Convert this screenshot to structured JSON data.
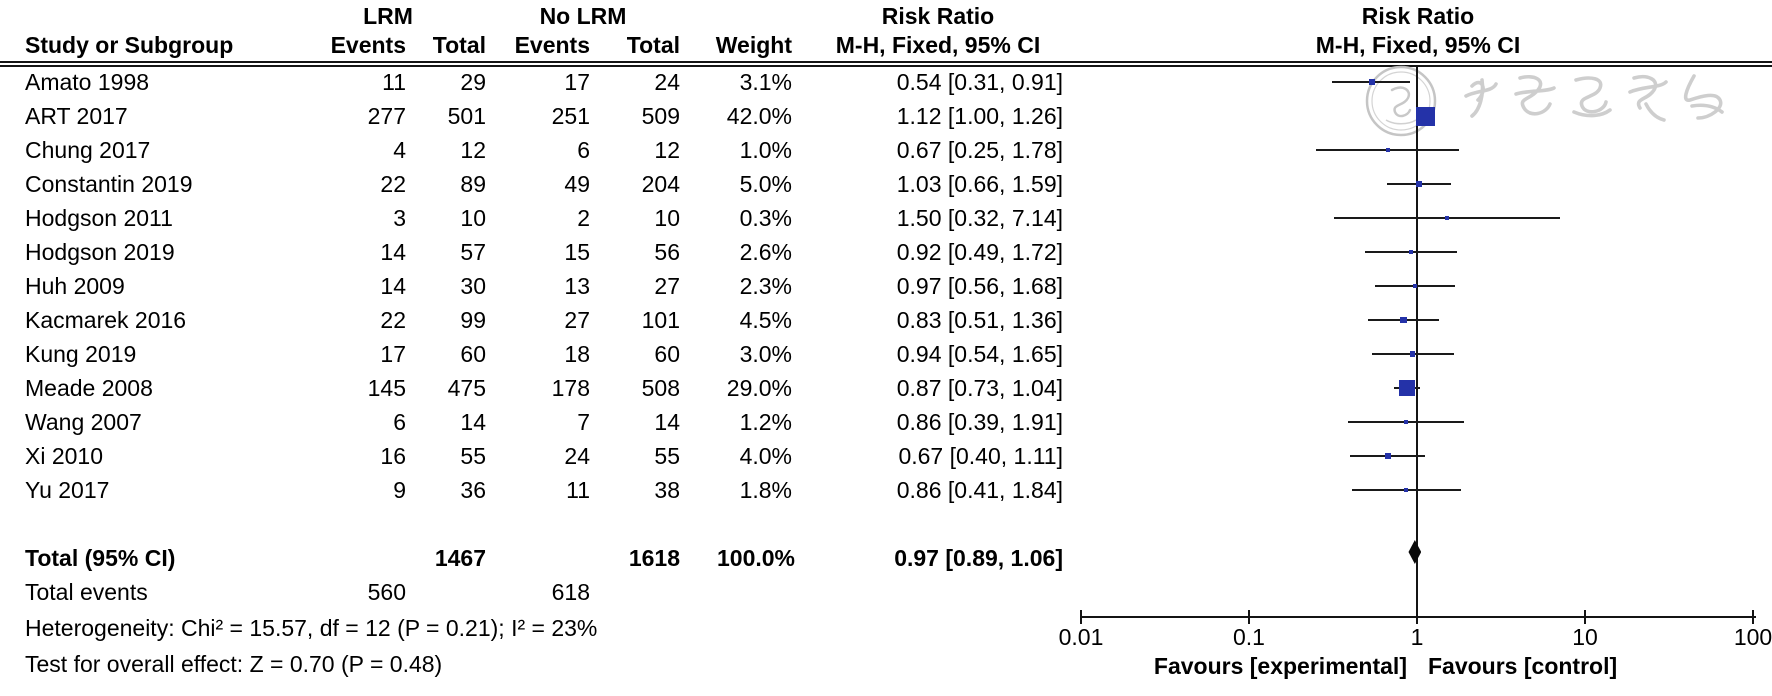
{
  "table": {
    "group1": "LRM",
    "group2": "No LRM",
    "risk_ratio_header": "Risk Ratio",
    "method_header": "M-H, Fixed, 95% CI",
    "study_col": "Study or Subgroup",
    "events_col": "Events",
    "total_col": "Total",
    "weight_col": "Weight"
  },
  "chart_data": {
    "type": "forest",
    "effect_measure": "Risk Ratio",
    "method": "M-H, Fixed, 95% CI",
    "x_axis": {
      "scale": "log",
      "xlim": [
        0.01,
        100
      ],
      "ticks": [
        0.01,
        0.1,
        1,
        10,
        100
      ],
      "tick_labels": [
        "0.01",
        "0.1",
        "1",
        "10",
        "100"
      ],
      "reference_line": 1
    },
    "favours_left": "Favours [experimental]",
    "favours_right": "Favours [control]",
    "studies": [
      {
        "study": "Amato 1998",
        "events_lrm": 11,
        "total_lrm": 29,
        "events_no_lrm": 17,
        "total_no_lrm": 24,
        "weight": "3.1%",
        "weight_pct": 3.1,
        "rr": 0.54,
        "ci_low": 0.31,
        "ci_high": 0.91,
        "rr_text": "0.54 [0.31, 0.91]"
      },
      {
        "study": "ART 2017",
        "events_lrm": 277,
        "total_lrm": 501,
        "events_no_lrm": 251,
        "total_no_lrm": 509,
        "weight": "42.0%",
        "weight_pct": 42.0,
        "rr": 1.12,
        "ci_low": 1.0,
        "ci_high": 1.26,
        "rr_text": "1.12 [1.00, 1.26]"
      },
      {
        "study": "Chung 2017",
        "events_lrm": 4,
        "total_lrm": 12,
        "events_no_lrm": 6,
        "total_no_lrm": 12,
        "weight": "1.0%",
        "weight_pct": 1.0,
        "rr": 0.67,
        "ci_low": 0.25,
        "ci_high": 1.78,
        "rr_text": "0.67 [0.25, 1.78]"
      },
      {
        "study": "Constantin 2019",
        "events_lrm": 22,
        "total_lrm": 89,
        "events_no_lrm": 49,
        "total_no_lrm": 204,
        "weight": "5.0%",
        "weight_pct": 5.0,
        "rr": 1.03,
        "ci_low": 0.66,
        "ci_high": 1.59,
        "rr_text": "1.03 [0.66, 1.59]"
      },
      {
        "study": "Hodgson 2011",
        "events_lrm": 3,
        "total_lrm": 10,
        "events_no_lrm": 2,
        "total_no_lrm": 10,
        "weight": "0.3%",
        "weight_pct": 0.3,
        "rr": 1.5,
        "ci_low": 0.32,
        "ci_high": 7.14,
        "rr_text": "1.50 [0.32, 7.14]"
      },
      {
        "study": "Hodgson 2019",
        "events_lrm": 14,
        "total_lrm": 57,
        "events_no_lrm": 15,
        "total_no_lrm": 56,
        "weight": "2.6%",
        "weight_pct": 2.6,
        "rr": 0.92,
        "ci_low": 0.49,
        "ci_high": 1.72,
        "rr_text": "0.92 [0.49, 1.72]"
      },
      {
        "study": "Huh 2009",
        "events_lrm": 14,
        "total_lrm": 30,
        "events_no_lrm": 13,
        "total_no_lrm": 27,
        "weight": "2.3%",
        "weight_pct": 2.3,
        "rr": 0.97,
        "ci_low": 0.56,
        "ci_high": 1.68,
        "rr_text": "0.97 [0.56, 1.68]"
      },
      {
        "study": "Kacmarek 2016",
        "events_lrm": 22,
        "total_lrm": 99,
        "events_no_lrm": 27,
        "total_no_lrm": 101,
        "weight": "4.5%",
        "weight_pct": 4.5,
        "rr": 0.83,
        "ci_low": 0.51,
        "ci_high": 1.36,
        "rr_text": "0.83 [0.51, 1.36]"
      },
      {
        "study": "Kung 2019",
        "events_lrm": 17,
        "total_lrm": 60,
        "events_no_lrm": 18,
        "total_no_lrm": 60,
        "weight": "3.0%",
        "weight_pct": 3.0,
        "rr": 0.94,
        "ci_low": 0.54,
        "ci_high": 1.65,
        "rr_text": "0.94 [0.54, 1.65]"
      },
      {
        "study": "Meade 2008",
        "events_lrm": 145,
        "total_lrm": 475,
        "events_no_lrm": 178,
        "total_no_lrm": 508,
        "weight": "29.0%",
        "weight_pct": 29.0,
        "rr": 0.87,
        "ci_low": 0.73,
        "ci_high": 1.04,
        "rr_text": "0.87 [0.73, 1.04]"
      },
      {
        "study": "Wang 2007",
        "events_lrm": 6,
        "total_lrm": 14,
        "events_no_lrm": 7,
        "total_no_lrm": 14,
        "weight": "1.2%",
        "weight_pct": 1.2,
        "rr": 0.86,
        "ci_low": 0.39,
        "ci_high": 1.91,
        "rr_text": "0.86 [0.39, 1.91]"
      },
      {
        "study": "Xi 2010",
        "events_lrm": 16,
        "total_lrm": 55,
        "events_no_lrm": 24,
        "total_no_lrm": 55,
        "weight": "4.0%",
        "weight_pct": 4.0,
        "rr": 0.67,
        "ci_low": 0.4,
        "ci_high": 1.11,
        "rr_text": "0.67 [0.40, 1.11]"
      },
      {
        "study": "Yu 2017",
        "events_lrm": 9,
        "total_lrm": 36,
        "events_no_lrm": 11,
        "total_no_lrm": 38,
        "weight": "1.8%",
        "weight_pct": 1.8,
        "rr": 0.86,
        "ci_low": 0.41,
        "ci_high": 1.84,
        "rr_text": "0.86 [0.41, 1.84]"
      }
    ],
    "total": {
      "label": "Total (95% CI)",
      "total_lrm": 1467,
      "total_no_lrm": 1618,
      "weight": "100.0%",
      "rr": 0.97,
      "ci_low": 0.89,
      "ci_high": 1.06,
      "rr_text": "0.97 [0.89, 1.06]"
    },
    "total_events": {
      "label": "Total events",
      "lrm": 560,
      "no_lrm": 618
    },
    "heterogeneity": "Heterogeneity: Chi² = 15.57, df = 12 (P = 0.21); I² = 23%",
    "overall_effect": "Test for overall effect: Z = 0.70 (P = 0.48)"
  },
  "watermark": {
    "description": "Chinese Medical Association seal and calligraphy"
  }
}
